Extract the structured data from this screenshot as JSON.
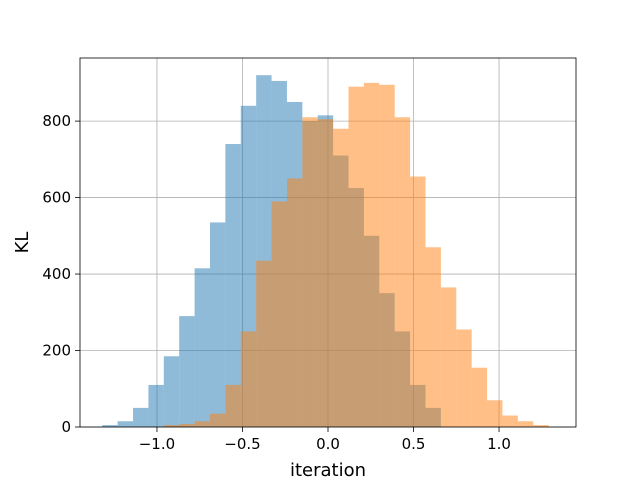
{
  "chart_data": {
    "type": "bar",
    "subtype": "overlapping-histogram",
    "title": "",
    "xlabel": "iteration",
    "ylabel": "KL",
    "xlim": [
      -1.45,
      1.45
    ],
    "ylim": [
      0,
      965
    ],
    "grid": true,
    "legend": "none",
    "x_ticks": [
      -1.0,
      -0.5,
      0.0,
      0.5,
      1.0
    ],
    "x_tick_labels": [
      "−1.0",
      "−0.5",
      "0.0",
      "0.5",
      "1.0"
    ],
    "y_ticks": [
      0,
      200,
      400,
      600,
      800
    ],
    "y_tick_labels": [
      "0",
      "200",
      "400",
      "600",
      "800"
    ],
    "series": [
      {
        "color": "#1f77b4",
        "opacity": 0.5,
        "bins": [
          {
            "x0": -1.32,
            "x1": -1.23,
            "count": 5
          },
          {
            "x0": -1.23,
            "x1": -1.14,
            "count": 15
          },
          {
            "x0": -1.14,
            "x1": -1.05,
            "count": 50
          },
          {
            "x0": -1.05,
            "x1": -0.96,
            "count": 110
          },
          {
            "x0": -0.96,
            "x1": -0.87,
            "count": 185
          },
          {
            "x0": -0.87,
            "x1": -0.78,
            "count": 290
          },
          {
            "x0": -0.78,
            "x1": -0.69,
            "count": 415
          },
          {
            "x0": -0.69,
            "x1": -0.6,
            "count": 535
          },
          {
            "x0": -0.6,
            "x1": -0.51,
            "count": 740
          },
          {
            "x0": -0.51,
            "x1": -0.42,
            "count": 840
          },
          {
            "x0": -0.42,
            "x1": -0.33,
            "count": 920
          },
          {
            "x0": -0.33,
            "x1": -0.24,
            "count": 905
          },
          {
            "x0": -0.24,
            "x1": -0.15,
            "count": 850
          },
          {
            "x0": -0.15,
            "x1": -0.06,
            "count": 800
          },
          {
            "x0": -0.06,
            "x1": 0.03,
            "count": 815
          },
          {
            "x0": 0.03,
            "x1": 0.12,
            "count": 710
          },
          {
            "x0": 0.12,
            "x1": 0.21,
            "count": 625
          },
          {
            "x0": 0.21,
            "x1": 0.3,
            "count": 500
          },
          {
            "x0": 0.3,
            "x1": 0.39,
            "count": 350
          },
          {
            "x0": 0.39,
            "x1": 0.48,
            "count": 250
          },
          {
            "x0": 0.48,
            "x1": 0.57,
            "count": 110
          },
          {
            "x0": 0.57,
            "x1": 0.66,
            "count": 50
          }
        ]
      },
      {
        "color": "#ff7f0e",
        "opacity": 0.5,
        "bins": [
          {
            "x0": -0.96,
            "x1": -0.87,
            "count": 5
          },
          {
            "x0": -0.87,
            "x1": -0.78,
            "count": 8
          },
          {
            "x0": -0.78,
            "x1": -0.69,
            "count": 15
          },
          {
            "x0": -0.69,
            "x1": -0.6,
            "count": 35
          },
          {
            "x0": -0.6,
            "x1": -0.51,
            "count": 110
          },
          {
            "x0": -0.51,
            "x1": -0.42,
            "count": 250
          },
          {
            "x0": -0.42,
            "x1": -0.33,
            "count": 435
          },
          {
            "x0": -0.33,
            "x1": -0.24,
            "count": 590
          },
          {
            "x0": -0.24,
            "x1": -0.15,
            "count": 650
          },
          {
            "x0": -0.15,
            "x1": -0.06,
            "count": 810
          },
          {
            "x0": -0.06,
            "x1": 0.03,
            "count": 805
          },
          {
            "x0": 0.03,
            "x1": 0.12,
            "count": 780
          },
          {
            "x0": 0.12,
            "x1": 0.21,
            "count": 890
          },
          {
            "x0": 0.21,
            "x1": 0.3,
            "count": 900
          },
          {
            "x0": 0.3,
            "x1": 0.39,
            "count": 895
          },
          {
            "x0": 0.39,
            "x1": 0.48,
            "count": 810
          },
          {
            "x0": 0.48,
            "x1": 0.57,
            "count": 655
          },
          {
            "x0": 0.57,
            "x1": 0.66,
            "count": 470
          },
          {
            "x0": 0.66,
            "x1": 0.75,
            "count": 365
          },
          {
            "x0": 0.75,
            "x1": 0.84,
            "count": 255
          },
          {
            "x0": 0.84,
            "x1": 0.93,
            "count": 155
          },
          {
            "x0": 0.93,
            "x1": 1.02,
            "count": 70
          },
          {
            "x0": 1.02,
            "x1": 1.11,
            "count": 30
          },
          {
            "x0": 1.11,
            "x1": 1.2,
            "count": 15
          },
          {
            "x0": 1.2,
            "x1": 1.29,
            "count": 5
          }
        ]
      }
    ]
  }
}
